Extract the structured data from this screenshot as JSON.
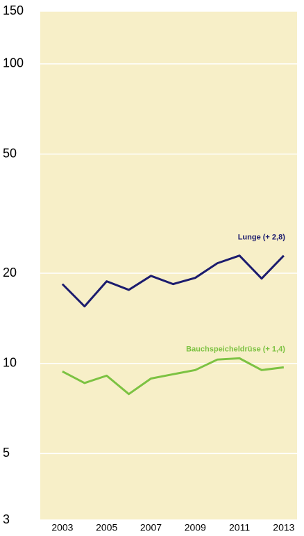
{
  "chart_data": {
    "type": "line",
    "log_y": true,
    "grid": true,
    "background": "#f7efc8",
    "x": [
      2003,
      2004,
      2005,
      2006,
      2007,
      2008,
      2009,
      2010,
      2011,
      2012,
      2013
    ],
    "xlim": [
      2002,
      2013.6
    ],
    "xticks": [
      2003,
      2005,
      2007,
      2009,
      2011,
      2013
    ],
    "ylim": [
      3,
      150
    ],
    "yticks": [
      3,
      5,
      10,
      20,
      50,
      100,
      150
    ],
    "series": [
      {
        "name": "Lunge (+ 2,8)",
        "color": "#1c1c6e",
        "values": [
          18.4,
          15.5,
          18.8,
          17.6,
          19.6,
          18.4,
          19.3,
          21.6,
          22.9,
          19.2,
          22.9
        ]
      },
      {
        "name": "Bauchspeicheldrüse (+ 1,4)",
        "color": "#7cc242",
        "values": [
          9.4,
          8.6,
          9.1,
          7.9,
          8.9,
          9.2,
          9.5,
          10.3,
          10.4,
          9.5,
          9.7
        ]
      }
    ]
  }
}
